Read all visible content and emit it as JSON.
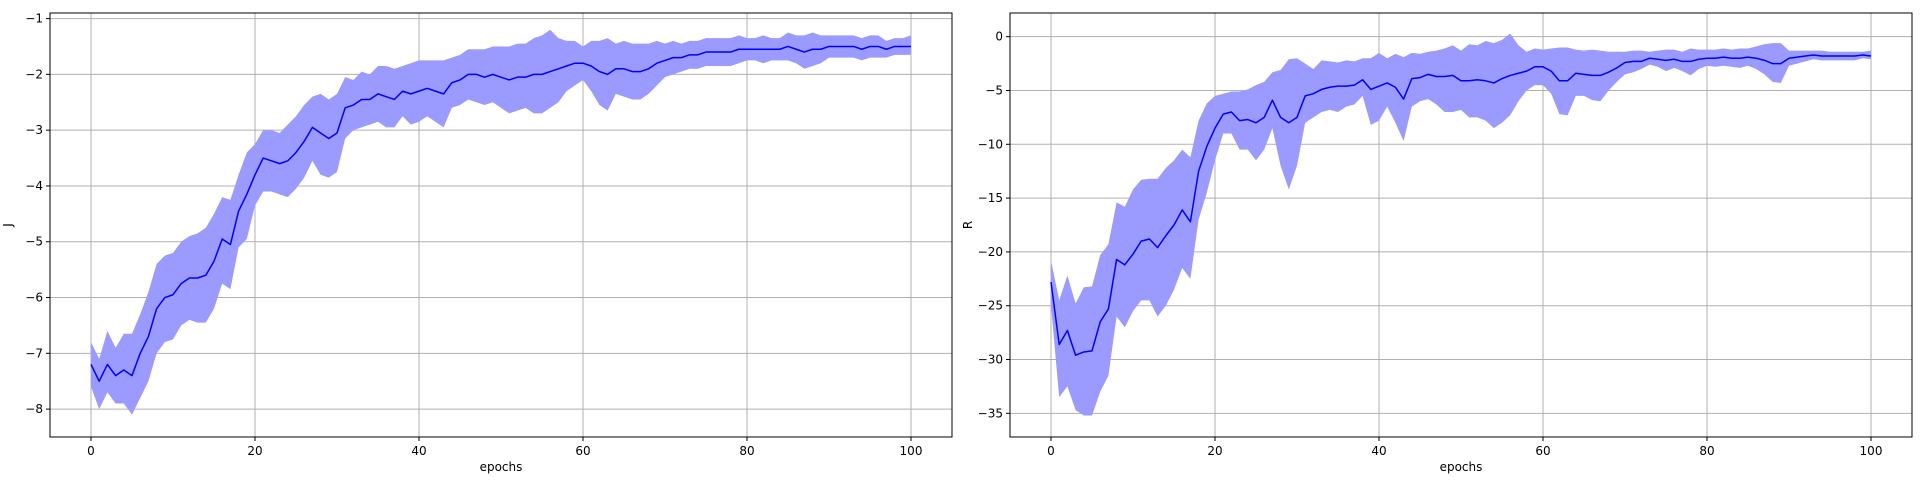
{
  "chart_data": [
    {
      "type": "line",
      "xlabel": "epochs",
      "ylabel": "J",
      "xlim": [
        -5,
        105
      ],
      "ylim": [
        -8.5,
        -0.9
      ],
      "xticks": [
        0,
        20,
        40,
        60,
        80,
        100
      ],
      "yticks": [
        -8,
        -7,
        -6,
        -5,
        -4,
        -3,
        -2,
        -1
      ],
      "grid": true,
      "line_color": "#0000ff",
      "band_color": "#9a9aff",
      "x": [
        0,
        1,
        2,
        3,
        4,
        5,
        6,
        7,
        8,
        9,
        10,
        11,
        12,
        13,
        14,
        15,
        16,
        17,
        18,
        19,
        20,
        21,
        22,
        23,
        24,
        25,
        26,
        27,
        28,
        29,
        30,
        31,
        32,
        33,
        34,
        35,
        36,
        37,
        38,
        39,
        40,
        41,
        42,
        43,
        44,
        45,
        46,
        47,
        48,
        49,
        50,
        51,
        52,
        53,
        54,
        55,
        56,
        57,
        58,
        59,
        60,
        61,
        62,
        63,
        64,
        65,
        66,
        67,
        68,
        69,
        70,
        71,
        72,
        73,
        74,
        75,
        76,
        77,
        78,
        79,
        80,
        81,
        82,
        83,
        84,
        85,
        86,
        87,
        88,
        89,
        90,
        91,
        92,
        93,
        94,
        95,
        96,
        97,
        98,
        99,
        100
      ],
      "series": [
        {
          "values": [
            -7.2,
            -7.5,
            -7.2,
            -7.4,
            -7.3,
            -7.4,
            -7.0,
            -6.7,
            -6.2,
            -6.0,
            -5.95,
            -5.75,
            -5.65,
            -5.65,
            -5.6,
            -5.35,
            -4.95,
            -5.05,
            -4.45,
            -4.15,
            -3.8,
            -3.5,
            -3.55,
            -3.6,
            -3.55,
            -3.4,
            -3.2,
            -2.95,
            -3.05,
            -3.15,
            -3.05,
            -2.6,
            -2.55,
            -2.45,
            -2.45,
            -2.35,
            -2.4,
            -2.45,
            -2.3,
            -2.35,
            -2.3,
            -2.25,
            -2.3,
            -2.35,
            -2.15,
            -2.1,
            -2.0,
            -2.0,
            -2.05,
            -2.0,
            -2.05,
            -2.1,
            -2.05,
            -2.05,
            -2.0,
            -2.0,
            -1.95,
            -1.9,
            -1.85,
            -1.8,
            -1.8,
            -1.85,
            -1.95,
            -2.0,
            -1.9,
            -1.9,
            -1.95,
            -1.95,
            -1.9,
            -1.8,
            -1.75,
            -1.7,
            -1.7,
            -1.65,
            -1.65,
            -1.6,
            -1.6,
            -1.6,
            -1.6,
            -1.55,
            -1.55,
            -1.55,
            -1.55,
            -1.55,
            -1.55,
            -1.5,
            -1.55,
            -1.6,
            -1.55,
            -1.55,
            -1.5,
            -1.5,
            -1.5,
            -1.5,
            -1.55,
            -1.5,
            -1.5,
            -1.55,
            -1.5,
            -1.5,
            -1.5
          ],
          "lower": [
            -7.6,
            -8.0,
            -7.7,
            -7.9,
            -7.9,
            -8.1,
            -7.8,
            -7.5,
            -7.0,
            -6.8,
            -6.75,
            -6.5,
            -6.4,
            -6.45,
            -6.45,
            -6.2,
            -5.75,
            -5.85,
            -5.1,
            -4.95,
            -4.35,
            -4.1,
            -4.1,
            -4.15,
            -4.2,
            -4.05,
            -3.85,
            -3.55,
            -3.8,
            -3.85,
            -3.75,
            -3.15,
            -3.0,
            -2.95,
            -2.9,
            -2.85,
            -2.95,
            -2.95,
            -2.75,
            -2.9,
            -2.85,
            -2.75,
            -2.85,
            -2.95,
            -2.6,
            -2.55,
            -2.45,
            -2.5,
            -2.55,
            -2.5,
            -2.6,
            -2.7,
            -2.65,
            -2.6,
            -2.7,
            -2.7,
            -2.6,
            -2.5,
            -2.3,
            -2.2,
            -2.1,
            -2.3,
            -2.55,
            -2.65,
            -2.35,
            -2.4,
            -2.45,
            -2.45,
            -2.35,
            -2.2,
            -2.05,
            -2.0,
            -1.95,
            -1.9,
            -1.9,
            -1.85,
            -1.85,
            -1.85,
            -1.85,
            -1.8,
            -1.75,
            -1.75,
            -1.8,
            -1.75,
            -1.75,
            -1.75,
            -1.8,
            -1.9,
            -1.85,
            -1.8,
            -1.7,
            -1.7,
            -1.7,
            -1.7,
            -1.75,
            -1.7,
            -1.7,
            -1.7,
            -1.65,
            -1.65,
            -1.65
          ],
          "upper": [
            -6.8,
            -7.1,
            -6.6,
            -6.9,
            -6.65,
            -6.65,
            -6.3,
            -5.9,
            -5.4,
            -5.25,
            -5.2,
            -5.0,
            -4.9,
            -4.85,
            -4.75,
            -4.5,
            -4.2,
            -4.25,
            -3.8,
            -3.4,
            -3.25,
            -3.0,
            -3.0,
            -3.05,
            -2.9,
            -2.75,
            -2.55,
            -2.4,
            -2.35,
            -2.45,
            -2.35,
            -2.05,
            -2.1,
            -1.95,
            -2.0,
            -1.85,
            -1.85,
            -1.9,
            -1.85,
            -1.8,
            -1.75,
            -1.75,
            -1.75,
            -1.75,
            -1.7,
            -1.65,
            -1.55,
            -1.55,
            -1.55,
            -1.5,
            -1.5,
            -1.5,
            -1.45,
            -1.45,
            -1.35,
            -1.3,
            -1.2,
            -1.35,
            -1.4,
            -1.4,
            -1.5,
            -1.4,
            -1.4,
            -1.35,
            -1.45,
            -1.4,
            -1.45,
            -1.45,
            -1.45,
            -1.4,
            -1.45,
            -1.4,
            -1.45,
            -1.4,
            -1.4,
            -1.35,
            -1.35,
            -1.35,
            -1.35,
            -1.3,
            -1.35,
            -1.35,
            -1.3,
            -1.35,
            -1.35,
            -1.25,
            -1.3,
            -1.3,
            -1.25,
            -1.3,
            -1.3,
            -1.3,
            -1.3,
            -1.3,
            -1.35,
            -1.3,
            -1.3,
            -1.4,
            -1.35,
            -1.35,
            -1.3
          ]
        }
      ]
    },
    {
      "type": "line",
      "xlabel": "epochs",
      "ylabel": "R",
      "xlim": [
        -5,
        105
      ],
      "ylim": [
        -37.2,
        2.2
      ],
      "xticks": [
        0,
        20,
        40,
        60,
        80,
        100
      ],
      "yticks": [
        -35,
        -30,
        -25,
        -20,
        -15,
        -10,
        -5,
        0
      ],
      "grid": true,
      "line_color": "#0000ff",
      "band_color": "#9a9aff",
      "x": [
        0,
        1,
        2,
        3,
        4,
        5,
        6,
        7,
        8,
        9,
        10,
        11,
        12,
        13,
        14,
        15,
        16,
        17,
        18,
        19,
        20,
        21,
        22,
        23,
        24,
        25,
        26,
        27,
        28,
        29,
        30,
        31,
        32,
        33,
        34,
        35,
        36,
        37,
        38,
        39,
        40,
        41,
        42,
        43,
        44,
        45,
        46,
        47,
        48,
        49,
        50,
        51,
        52,
        53,
        54,
        55,
        56,
        57,
        58,
        59,
        60,
        61,
        62,
        63,
        64,
        65,
        66,
        67,
        68,
        69,
        70,
        71,
        72,
        73,
        74,
        75,
        76,
        77,
        78,
        79,
        80,
        81,
        82,
        83,
        84,
        85,
        86,
        87,
        88,
        89,
        90,
        91,
        92,
        93,
        94,
        95,
        96,
        97,
        98,
        99,
        100
      ],
      "series": [
        {
          "values": [
            -22.8,
            -28.6,
            -27.3,
            -29.6,
            -29.3,
            -29.2,
            -26.5,
            -25.3,
            -20.7,
            -21.2,
            -20.2,
            -19.0,
            -18.8,
            -19.6,
            -18.5,
            -17.5,
            -16.1,
            -17.2,
            -12.5,
            -10.2,
            -8.5,
            -7.2,
            -7.0,
            -7.8,
            -7.7,
            -8.0,
            -7.5,
            -5.9,
            -7.5,
            -8.0,
            -7.5,
            -5.5,
            -5.3,
            -4.9,
            -4.7,
            -4.6,
            -4.6,
            -4.5,
            -4.0,
            -4.9,
            -4.6,
            -4.3,
            -4.7,
            -5.8,
            -3.9,
            -3.8,
            -3.5,
            -3.7,
            -3.7,
            -3.6,
            -4.1,
            -4.1,
            -4.0,
            -4.1,
            -4.3,
            -3.9,
            -3.6,
            -3.4,
            -3.2,
            -2.8,
            -2.8,
            -3.2,
            -4.1,
            -4.1,
            -3.4,
            -3.5,
            -3.6,
            -3.6,
            -3.3,
            -2.9,
            -2.4,
            -2.3,
            -2.3,
            -2.0,
            -2.1,
            -2.2,
            -2.1,
            -2.3,
            -2.3,
            -2.1,
            -2.0,
            -2.0,
            -1.9,
            -2.0,
            -2.0,
            -1.9,
            -2.0,
            -2.2,
            -2.5,
            -2.5,
            -2.0,
            -1.9,
            -1.8,
            -1.7,
            -1.8,
            -1.8,
            -1.8,
            -1.8,
            -1.8,
            -1.7,
            -1.8
          ],
          "lower": [
            -25.0,
            -33.5,
            -32.5,
            -34.7,
            -35.2,
            -35.2,
            -33.0,
            -31.5,
            -26.0,
            -27.0,
            -25.5,
            -24.5,
            -24.5,
            -26.0,
            -25.0,
            -23.5,
            -21.5,
            -22.5,
            -17.0,
            -14.5,
            -11.5,
            -9.0,
            -9.0,
            -10.5,
            -10.5,
            -11.5,
            -10.5,
            -8.5,
            -12.0,
            -14.2,
            -12.0,
            -8.0,
            -7.5,
            -7.0,
            -6.8,
            -7.0,
            -6.5,
            -6.3,
            -5.5,
            -8.2,
            -7.8,
            -6.5,
            -8.0,
            -9.7,
            -6.5,
            -6.0,
            -5.8,
            -6.3,
            -7.0,
            -7.0,
            -6.8,
            -7.5,
            -7.5,
            -7.8,
            -8.5,
            -8.0,
            -7.3,
            -6.0,
            -5.0,
            -4.5,
            -4.5,
            -5.3,
            -7.2,
            -7.3,
            -5.5,
            -5.5,
            -5.9,
            -6.0,
            -5.0,
            -4.2,
            -3.5,
            -3.3,
            -3.0,
            -2.6,
            -2.8,
            -3.2,
            -2.9,
            -3.2,
            -3.6,
            -3.0,
            -2.7,
            -2.8,
            -2.7,
            -2.8,
            -2.9,
            -2.7,
            -3.0,
            -3.5,
            -4.2,
            -4.3,
            -2.7,
            -2.5,
            -2.3,
            -2.1,
            -2.2,
            -2.2,
            -2.2,
            -2.2,
            -2.2,
            -2.0,
            -2.1
          ],
          "upper": [
            -20.8,
            -24.5,
            -22.2,
            -24.8,
            -23.3,
            -23.2,
            -20.3,
            -19.3,
            -15.4,
            -15.8,
            -14.2,
            -13.3,
            -13.2,
            -13.2,
            -12.2,
            -11.5,
            -10.5,
            -11.2,
            -7.8,
            -6.2,
            -5.5,
            -5.3,
            -5.1,
            -5.1,
            -4.9,
            -4.5,
            -4.2,
            -3.3,
            -3.1,
            -2.1,
            -2.0,
            -2.5,
            -3.0,
            -2.2,
            -2.3,
            -2.4,
            -2.2,
            -2.3,
            -2.0,
            -2.0,
            -1.5,
            -2.0,
            -1.6,
            -1.9,
            -1.5,
            -1.6,
            -1.4,
            -1.3,
            -1.1,
            -0.8,
            -1.3,
            -0.7,
            -0.8,
            -0.4,
            -0.6,
            -0.3,
            0.3,
            -0.8,
            -1.4,
            -1.1,
            -1.2,
            -1.1,
            -1.0,
            -1.0,
            -1.2,
            -1.3,
            -1.2,
            -1.3,
            -1.4,
            -1.4,
            -1.4,
            -1.3,
            -1.3,
            -1.4,
            -1.3,
            -1.2,
            -1.2,
            -1.4,
            -1.1,
            -1.2,
            -1.2,
            -1.2,
            -1.1,
            -1.2,
            -1.1,
            -1.1,
            -0.9,
            -0.7,
            -0.6,
            -0.6,
            -1.3,
            -1.3,
            -1.3,
            -1.3,
            -1.3,
            -1.4,
            -1.4,
            -1.4,
            -1.4,
            -1.4,
            -1.3
          ]
        }
      ]
    }
  ]
}
